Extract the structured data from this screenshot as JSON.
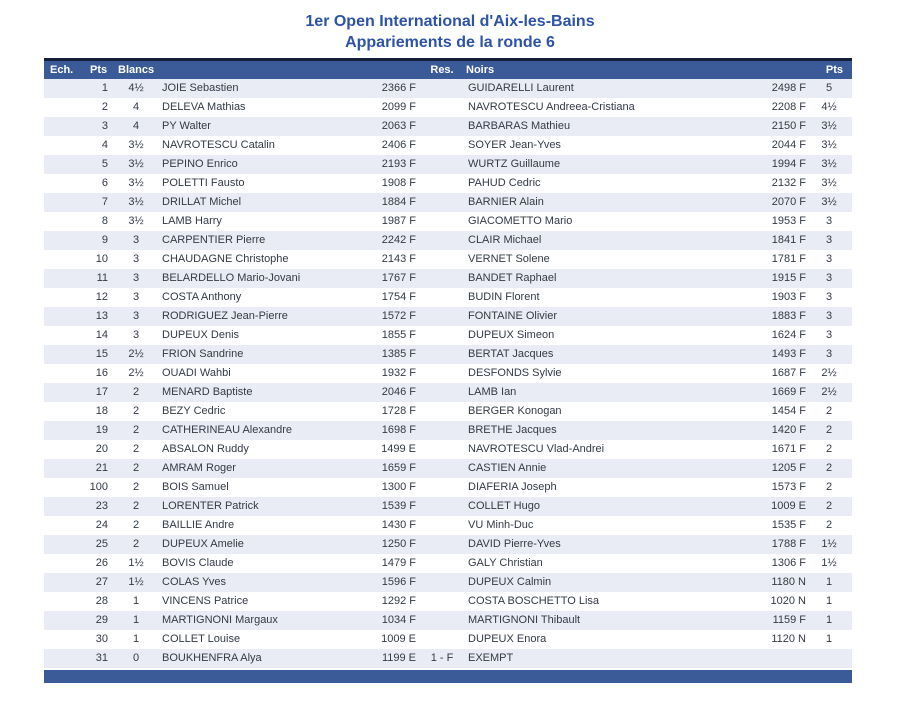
{
  "title": {
    "line1": "1er Open International d'Aix-les-Bains",
    "line2": "Appariements de la ronde 6"
  },
  "colors": {
    "header_bar": "#3a5a98",
    "header_border_top": "#161f3a",
    "title_text": "#2d53a8",
    "alt_row": "#eaecf5",
    "row_text": "#333a46"
  },
  "table": {
    "headers": {
      "board": "Ech.",
      "white_points": "Pts",
      "white": "Blancs",
      "result": "Res.",
      "black": "Noirs",
      "black_points": "Pts"
    },
    "rows": [
      {
        "board": "1",
        "wpts": "4½",
        "wname": "JOIE Sebastien",
        "welo": "2366 F",
        "res": "",
        "bname": "GUIDARELLI Laurent",
        "belo": "2498 F",
        "bpts": "5"
      },
      {
        "board": "2",
        "wpts": "4",
        "wname": "DELEVA Mathias",
        "welo": "2099 F",
        "res": "",
        "bname": "NAVROTESCU Andreea-Cristiana",
        "belo": "2208 F",
        "bpts": "4½"
      },
      {
        "board": "3",
        "wpts": "4",
        "wname": "PY Walter",
        "welo": "2063 F",
        "res": "",
        "bname": "BARBARAS Mathieu",
        "belo": "2150 F",
        "bpts": "3½"
      },
      {
        "board": "4",
        "wpts": "3½",
        "wname": "NAVROTESCU Catalin",
        "welo": "2406 F",
        "res": "",
        "bname": "SOYER Jean-Yves",
        "belo": "2044 F",
        "bpts": "3½"
      },
      {
        "board": "5",
        "wpts": "3½",
        "wname": "PEPINO Enrico",
        "welo": "2193 F",
        "res": "",
        "bname": "WURTZ Guillaume",
        "belo": "1994 F",
        "bpts": "3½"
      },
      {
        "board": "6",
        "wpts": "3½",
        "wname": "POLETTI Fausto",
        "welo": "1908 F",
        "res": "",
        "bname": "PAHUD Cedric",
        "belo": "2132 F",
        "bpts": "3½"
      },
      {
        "board": "7",
        "wpts": "3½",
        "wname": "DRILLAT Michel",
        "welo": "1884 F",
        "res": "",
        "bname": "BARNIER Alain",
        "belo": "2070 F",
        "bpts": "3½"
      },
      {
        "board": "8",
        "wpts": "3½",
        "wname": "LAMB Harry",
        "welo": "1987 F",
        "res": "",
        "bname": "GIACOMETTO Mario",
        "belo": "1953 F",
        "bpts": "3"
      },
      {
        "board": "9",
        "wpts": "3",
        "wname": "CARPENTIER Pierre",
        "welo": "2242 F",
        "res": "",
        "bname": "CLAIR Michael",
        "belo": "1841 F",
        "bpts": "3"
      },
      {
        "board": "10",
        "wpts": "3",
        "wname": "CHAUDAGNE Christophe",
        "welo": "2143 F",
        "res": "",
        "bname": "VERNET Solene",
        "belo": "1781 F",
        "bpts": "3"
      },
      {
        "board": "11",
        "wpts": "3",
        "wname": "BELARDELLO Mario-Jovani",
        "welo": "1767 F",
        "res": "",
        "bname": "BANDET Raphael",
        "belo": "1915 F",
        "bpts": "3"
      },
      {
        "board": "12",
        "wpts": "3",
        "wname": "COSTA Anthony",
        "welo": "1754 F",
        "res": "",
        "bname": "BUDIN Florent",
        "belo": "1903 F",
        "bpts": "3"
      },
      {
        "board": "13",
        "wpts": "3",
        "wname": "RODRIGUEZ Jean-Pierre",
        "welo": "1572 F",
        "res": "",
        "bname": "FONTAINE Olivier",
        "belo": "1883 F",
        "bpts": "3"
      },
      {
        "board": "14",
        "wpts": "3",
        "wname": "DUPEUX Denis",
        "welo": "1855 F",
        "res": "",
        "bname": "DUPEUX Simeon",
        "belo": "1624 F",
        "bpts": "3"
      },
      {
        "board": "15",
        "wpts": "2½",
        "wname": "FRION Sandrine",
        "welo": "1385 F",
        "res": "",
        "bname": "BERTAT Jacques",
        "belo": "1493 F",
        "bpts": "3"
      },
      {
        "board": "16",
        "wpts": "2½",
        "wname": "OUADI Wahbi",
        "welo": "1932 F",
        "res": "",
        "bname": "DESFONDS Sylvie",
        "belo": "1687 F",
        "bpts": "2½"
      },
      {
        "board": "17",
        "wpts": "2",
        "wname": "MENARD Baptiste",
        "welo": "2046 F",
        "res": "",
        "bname": "LAMB Ian",
        "belo": "1669 F",
        "bpts": "2½"
      },
      {
        "board": "18",
        "wpts": "2",
        "wname": "BEZY Cedric",
        "welo": "1728 F",
        "res": "",
        "bname": "BERGER Konogan",
        "belo": "1454 F",
        "bpts": "2"
      },
      {
        "board": "19",
        "wpts": "2",
        "wname": "CATHERINEAU Alexandre",
        "welo": "1698 F",
        "res": "",
        "bname": "BRETHE Jacques",
        "belo": "1420 F",
        "bpts": "2"
      },
      {
        "board": "20",
        "wpts": "2",
        "wname": "ABSALON Ruddy",
        "welo": "1499 E",
        "res": "",
        "bname": "NAVROTESCU Vlad-Andrei",
        "belo": "1671 F",
        "bpts": "2"
      },
      {
        "board": "21",
        "wpts": "2",
        "wname": "AMRAM Roger",
        "welo": "1659 F",
        "res": "",
        "bname": "CASTIEN Annie",
        "belo": "1205 F",
        "bpts": "2"
      },
      {
        "board": "100",
        "wpts": "2",
        "wname": "BOIS Samuel",
        "welo": "1300 F",
        "res": "",
        "bname": "DIAFERIA Joseph",
        "belo": "1573 F",
        "bpts": "2"
      },
      {
        "board": "23",
        "wpts": "2",
        "wname": "LORENTER Patrick",
        "welo": "1539 F",
        "res": "",
        "bname": "COLLET Hugo",
        "belo": "1009 E",
        "bpts": "2"
      },
      {
        "board": "24",
        "wpts": "2",
        "wname": "BAILLIE Andre",
        "welo": "1430 F",
        "res": "",
        "bname": "VU Minh-Duc",
        "belo": "1535 F",
        "bpts": "2"
      },
      {
        "board": "25",
        "wpts": "2",
        "wname": "DUPEUX Amelie",
        "welo": "1250 F",
        "res": "",
        "bname": "DAVID Pierre-Yves",
        "belo": "1788 F",
        "bpts": "1½"
      },
      {
        "board": "26",
        "wpts": "1½",
        "wname": "BOVIS Claude",
        "welo": "1479 F",
        "res": "",
        "bname": "GALY Christian",
        "belo": "1306 F",
        "bpts": "1½"
      },
      {
        "board": "27",
        "wpts": "1½",
        "wname": "COLAS Yves",
        "welo": "1596 F",
        "res": "",
        "bname": "DUPEUX Calmin",
        "belo": "1180 N",
        "bpts": "1"
      },
      {
        "board": "28",
        "wpts": "1",
        "wname": "VINCENS Patrice",
        "welo": "1292 F",
        "res": "",
        "bname": "COSTA BOSCHETTO Lisa",
        "belo": "1020 N",
        "bpts": "1"
      },
      {
        "board": "29",
        "wpts": "1",
        "wname": "MARTIGNONI Margaux",
        "welo": "1034 F",
        "res": "",
        "bname": "MARTIGNONI Thibault",
        "belo": "1159 F",
        "bpts": "1"
      },
      {
        "board": "30",
        "wpts": "1",
        "wname": "COLLET Louise",
        "welo": "1009 E",
        "res": "",
        "bname": "DUPEUX Enora",
        "belo": "1120 N",
        "bpts": "1"
      },
      {
        "board": "31",
        "wpts": "0",
        "wname": "BOUKHENFRA Alya",
        "welo": "1199 E",
        "res": "1 - F",
        "bname": "EXEMPT",
        "belo": "",
        "bpts": ""
      }
    ]
  }
}
